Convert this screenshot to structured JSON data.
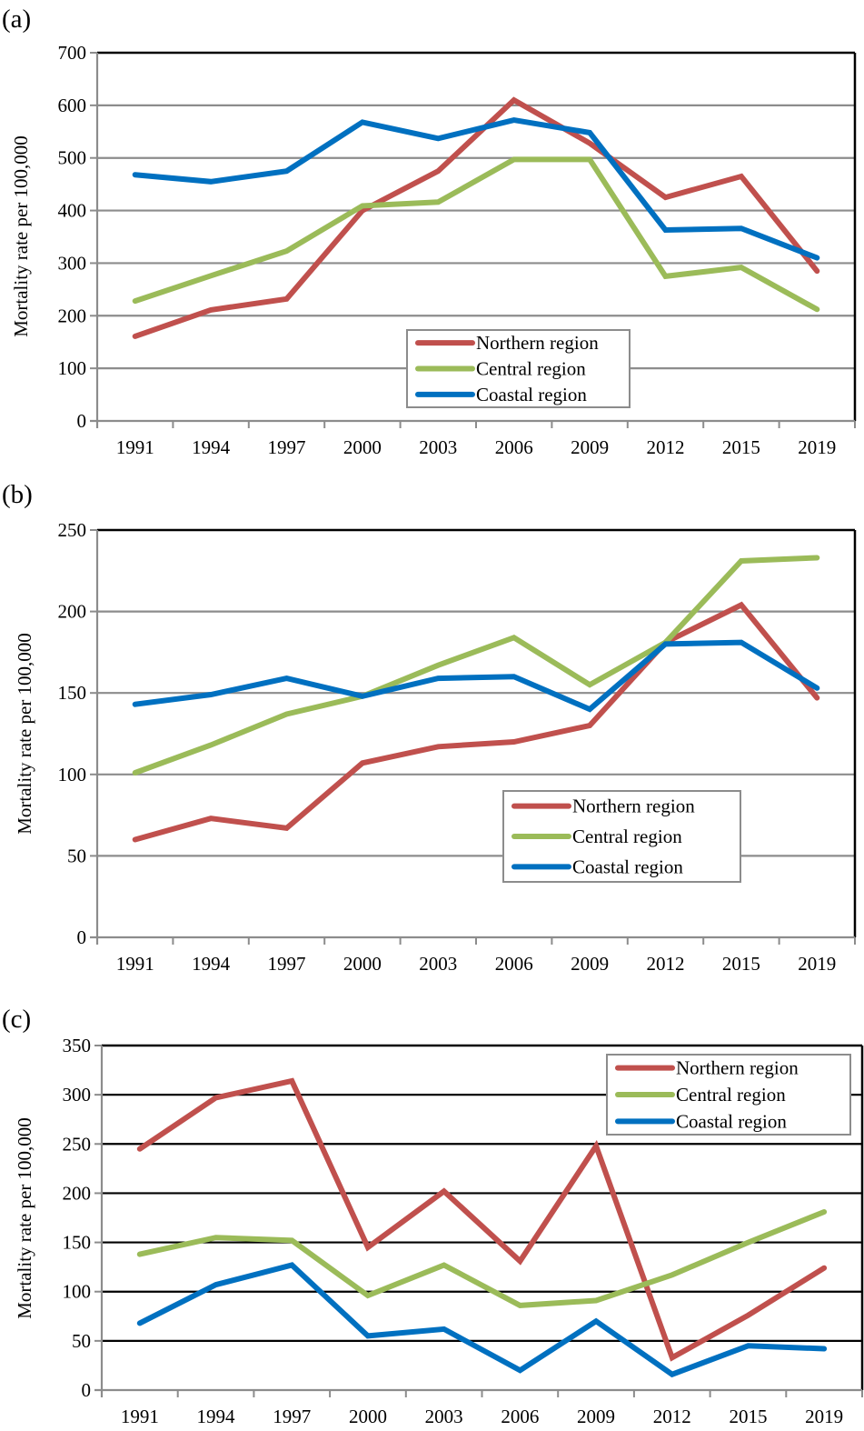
{
  "chart_data": [
    {
      "type": "line",
      "panel_label": "(a)",
      "title": "",
      "xlabel": "",
      "ylabel": "Mortality rate per 100,000",
      "ylim": [
        0,
        700
      ],
      "yticks": [
        0,
        100,
        200,
        300,
        400,
        500,
        600,
        700
      ],
      "grid": true,
      "legend_position": "bottom-center",
      "categories": [
        "1991",
        "1994",
        "1997",
        "2000",
        "2003",
        "2006",
        "2009",
        "2012",
        "2015",
        "2019"
      ],
      "series": [
        {
          "name": "Northern region",
          "color": "#C0504D",
          "values": [
            161,
            211,
            232,
            400,
            475,
            610,
            528,
            425,
            465,
            285
          ]
        },
        {
          "name": "Central region",
          "color": "#9BBB59",
          "values": [
            228,
            276,
            323,
            409,
            416,
            497,
            497,
            275,
            292,
            212
          ]
        },
        {
          "name": "Coastal region",
          "color": "#0070C0",
          "values": [
            468,
            455,
            475,
            568,
            537,
            572,
            548,
            363,
            366,
            310
          ]
        }
      ]
    },
    {
      "type": "line",
      "panel_label": "(b)",
      "title": "",
      "xlabel": "",
      "ylabel": "Mortality rate per 100,000",
      "ylim": [
        0,
        250
      ],
      "yticks": [
        0,
        50,
        100,
        150,
        200,
        250
      ],
      "grid": true,
      "legend_position": "bottom-right",
      "categories": [
        "1991",
        "1994",
        "1997",
        "2000",
        "2003",
        "2006",
        "2009",
        "2012",
        "2015",
        "2019"
      ],
      "series": [
        {
          "name": "Northern region",
          "color": "#C0504D",
          "values": [
            60,
            73,
            67,
            107,
            117,
            120,
            130,
            181,
            204,
            147
          ]
        },
        {
          "name": "Central region",
          "color": "#9BBB59",
          "values": [
            101,
            118,
            137,
            148,
            167,
            184,
            155,
            181,
            231,
            233
          ]
        },
        {
          "name": "Coastal region",
          "color": "#0070C0",
          "values": [
            143,
            149,
            159,
            148,
            159,
            160,
            140,
            180,
            181,
            153
          ]
        }
      ]
    },
    {
      "type": "line",
      "panel_label": "(c)",
      "title": "",
      "xlabel": "",
      "ylabel": "Mortality rate per 100,000",
      "ylim": [
        0,
        350
      ],
      "yticks": [
        0,
        50,
        100,
        150,
        200,
        250,
        300,
        350
      ],
      "grid": true,
      "legend_position": "top-right",
      "categories": [
        "1991",
        "1994",
        "1997",
        "2000",
        "2003",
        "2006",
        "2009",
        "2012",
        "2015",
        "2019"
      ],
      "series": [
        {
          "name": "Northern region",
          "color": "#C0504D",
          "values": [
            245,
            297,
            314,
            145,
            202,
            131,
            248,
            33,
            76,
            124
          ]
        },
        {
          "name": "Central region",
          "color": "#9BBB59",
          "values": [
            138,
            155,
            152,
            96,
            127,
            86,
            91,
            117,
            150,
            181
          ]
        },
        {
          "name": "Coastal region",
          "color": "#0070C0",
          "values": [
            68,
            107,
            127,
            55,
            62,
            20,
            70,
            16,
            45,
            42
          ]
        }
      ]
    }
  ]
}
